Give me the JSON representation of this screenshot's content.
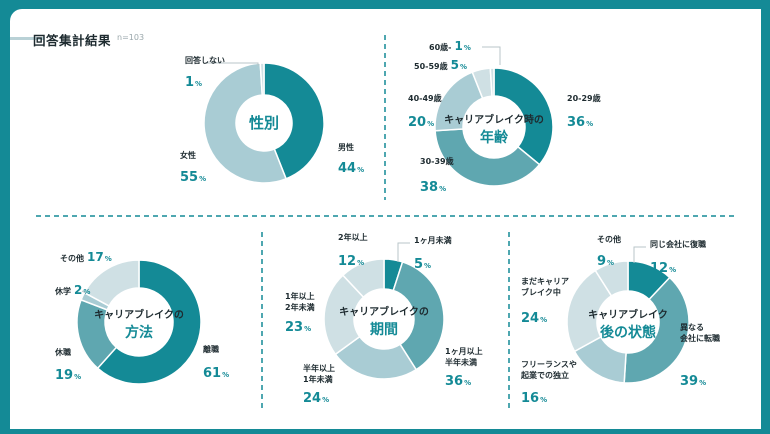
{
  "header": {
    "title": "回答集計結果",
    "n_label": "n=103"
  },
  "colors": {
    "teal_dark": "#148a96",
    "teal_mid": "#5fa7b0",
    "teal_light": "#a9ccd4",
    "teal_pale": "#cfe0e4",
    "bg": "#148a96"
  },
  "chart_data": [
    {
      "type": "pie",
      "title": "性別",
      "slices": [
        {
          "label": "男性",
          "value": 44,
          "unit": "%"
        },
        {
          "label": "女性",
          "value": 55,
          "unit": "%"
        },
        {
          "label": "回答しない",
          "value": 1,
          "unit": "%"
        }
      ]
    },
    {
      "type": "pie",
      "title": "キャリアブレイク時の",
      "title2": "年齢",
      "slices": [
        {
          "label": "20-29歳",
          "value": 36,
          "unit": "%"
        },
        {
          "label": "30-39歳",
          "value": 38,
          "unit": "%"
        },
        {
          "label": "40-49歳",
          "value": 20,
          "unit": "%"
        },
        {
          "label": "50-59歳",
          "value": 5,
          "unit": "%"
        },
        {
          "label": "60歳-",
          "value": 1,
          "unit": "%"
        }
      ]
    },
    {
      "type": "pie",
      "title": "キャリアブレイクの",
      "title2": "方法",
      "slices": [
        {
          "label": "離職",
          "value": 61,
          "unit": "%"
        },
        {
          "label": "休職",
          "value": 19,
          "unit": "%"
        },
        {
          "label": "休学",
          "value": 2,
          "unit": "%"
        },
        {
          "label": "その他",
          "value": 17,
          "unit": "%"
        }
      ]
    },
    {
      "type": "pie",
      "title": "キャリアブレイクの",
      "title2": "期間",
      "slices": [
        {
          "label": "1ヶ月未満",
          "value": 5,
          "unit": "%"
        },
        {
          "label": "1ヶ月以上\n半年未満",
          "value": 36,
          "unit": "%"
        },
        {
          "label": "半年以上\n1年未満",
          "value": 24,
          "unit": "%"
        },
        {
          "label": "1年以上\n2年未満",
          "value": 23,
          "unit": "%"
        },
        {
          "label": "2年以上",
          "value": 12,
          "unit": "%"
        }
      ]
    },
    {
      "type": "pie",
      "title": "キャリアブレイク",
      "title2": "後の状態",
      "slices": [
        {
          "label": "同じ会社に復職",
          "value": 12,
          "unit": "%"
        },
        {
          "label": "異なる\n会社に転職",
          "value": 39,
          "unit": "%"
        },
        {
          "label": "フリーランスや\n起業での独立",
          "value": 16,
          "unit": "%"
        },
        {
          "label": "まだキャリア\nブレイク中",
          "value": 24,
          "unit": "%"
        },
        {
          "label": "その他",
          "value": 9,
          "unit": "%"
        }
      ]
    }
  ]
}
